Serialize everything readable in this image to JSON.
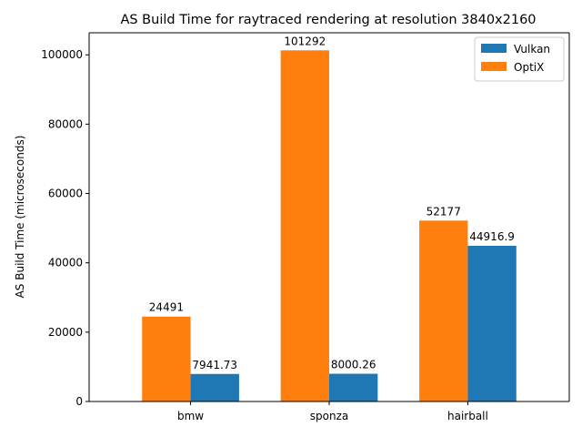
{
  "chart_data": {
    "type": "bar",
    "title": "AS Build Time for raytraced rendering at resolution 3840x2160",
    "xlabel": "",
    "ylabel": "AS Build Time (microseconds)",
    "categories": [
      "bmw",
      "sponza",
      "hairball"
    ],
    "series": [
      {
        "name": "Vulkan",
        "color": "#1f77b4",
        "values": [
          7941.73,
          8000.26,
          44916.9
        ],
        "labels": [
          "7941.73",
          "8000.26",
          "44916.9"
        ]
      },
      {
        "name": "OptiX",
        "color": "#ff7f0e",
        "values": [
          24491,
          101292,
          52177
        ],
        "labels": [
          "24491",
          "101292",
          "52177"
        ]
      }
    ],
    "bar_order": [
      "OptiX",
      "Vulkan"
    ],
    "ylim": [
      0,
      106356.6
    ],
    "yticks": [
      0,
      20000,
      40000,
      60000,
      80000,
      100000
    ],
    "ytick_labels": [
      "0",
      "20000",
      "40000",
      "60000",
      "80000",
      "100000"
    ],
    "grid": false,
    "legend": "top-right"
  }
}
